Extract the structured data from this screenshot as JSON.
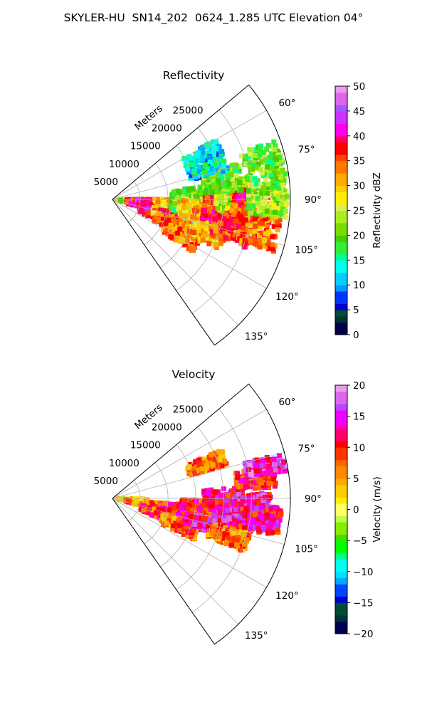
{
  "figure": {
    "title": "SKYLER-HU  SN14_202  0624_1.285 UTC Elevation 04°"
  },
  "chart_data": [
    {
      "type": "heatmap",
      "title": "Reflectivity",
      "radial_label": "Meters",
      "radial_ticks": [
        5000,
        10000,
        15000,
        20000,
        25000
      ],
      "radial_tick_labels": [
        "5000",
        "10000",
        "15000",
        "20000",
        "25000"
      ],
      "radial_max_m": 32000,
      "azimuth_range_deg": [
        50,
        145
      ],
      "azimuth_ticks": [
        60,
        75,
        90,
        105,
        120,
        135
      ],
      "azimuth_tick_labels": [
        "60°",
        "75°",
        "90°",
        "105°",
        "120°",
        "135°"
      ],
      "colorbar": {
        "label": "Reflectivity dBZ",
        "range": [
          0,
          50
        ],
        "ticks": [
          0,
          5,
          10,
          15,
          20,
          25,
          30,
          35,
          40,
          45,
          50
        ],
        "tick_labels": [
          "0",
          "5",
          "10",
          "15",
          "20",
          "25",
          "30",
          "35",
          "40",
          "45",
          "50"
        ],
        "stops": [
          {
            "v": 0,
            "c": "#00004d"
          },
          {
            "v": 1.5,
            "c": "#003333"
          },
          {
            "v": 3,
            "c": "#004d33"
          },
          {
            "v": 4.5,
            "c": "#0000cc"
          },
          {
            "v": 6,
            "c": "#0033ff"
          },
          {
            "v": 8,
            "c": "#0099ff"
          },
          {
            "v": 10,
            "c": "#00ccff"
          },
          {
            "v": 12,
            "c": "#00ffee"
          },
          {
            "v": 14,
            "c": "#00ff99"
          },
          {
            "v": 16,
            "c": "#33ee33"
          },
          {
            "v": 18,
            "c": "#44cc00"
          },
          {
            "v": 20,
            "c": "#77dd00"
          },
          {
            "v": 22,
            "c": "#aaee22"
          },
          {
            "v": 24,
            "c": "#ddee55"
          },
          {
            "v": 26,
            "c": "#ffee00"
          },
          {
            "v": 28,
            "c": "#ffcc00"
          },
          {
            "v": 30,
            "c": "#ffaa00"
          },
          {
            "v": 32,
            "c": "#ff7700"
          },
          {
            "v": 34,
            "c": "#ff4400"
          },
          {
            "v": 36,
            "c": "#ff0000"
          },
          {
            "v": 38,
            "c": "#ff0066"
          },
          {
            "v": 40,
            "c": "#ff00ee"
          },
          {
            "v": 42,
            "c": "#cc33ff"
          },
          {
            "v": 44,
            "c": "#aa55ff"
          },
          {
            "v": 46,
            "c": "#dd66ee"
          },
          {
            "v": 48,
            "c": "#ee99ee"
          },
          {
            "v": 50,
            "c": "#ffeeff"
          }
        ]
      },
      "cells": [
        {
          "az": 95,
          "r": 3000,
          "v": 23,
          "spread": 6
        },
        {
          "az": 98,
          "r": 6000,
          "v": 38,
          "spread": 8
        },
        {
          "az": 105,
          "r": 8000,
          "v": 40,
          "spread": 10
        },
        {
          "az": 100,
          "r": 11000,
          "v": 30,
          "spread": 10
        },
        {
          "az": 110,
          "r": 12000,
          "v": 35,
          "spread": 8
        },
        {
          "az": 115,
          "r": 14000,
          "v": 33,
          "spread": 8
        },
        {
          "az": 92,
          "r": 14000,
          "v": 20,
          "spread": 10
        },
        {
          "az": 98,
          "r": 16000,
          "v": 28,
          "spread": 8
        },
        {
          "az": 105,
          "r": 18000,
          "v": 30,
          "spread": 10
        },
        {
          "az": 95,
          "r": 20000,
          "v": 37,
          "spread": 8
        },
        {
          "az": 100,
          "r": 22000,
          "v": 35,
          "spread": 10
        },
        {
          "az": 88,
          "r": 22000,
          "v": 24,
          "spread": 8
        },
        {
          "az": 93,
          "r": 25000,
          "v": 36,
          "spread": 8
        },
        {
          "az": 100,
          "r": 27000,
          "v": 33,
          "spread": 8
        },
        {
          "az": 90,
          "r": 28000,
          "v": 22,
          "spread": 6
        },
        {
          "az": 78,
          "r": 28000,
          "v": 20,
          "spread": 8
        },
        {
          "az": 80,
          "r": 20000,
          "v": 20,
          "spread": 6
        },
        {
          "az": 68,
          "r": 18000,
          "v": 12,
          "spread": 8
        }
      ]
    },
    {
      "type": "heatmap",
      "title": "Velocity",
      "radial_label": "Meters",
      "radial_ticks": [
        5000,
        10000,
        15000,
        20000,
        25000
      ],
      "radial_tick_labels": [
        "5000",
        "10000",
        "15000",
        "20000",
        "25000"
      ],
      "radial_max_m": 32000,
      "azimuth_range_deg": [
        50,
        145
      ],
      "azimuth_ticks": [
        60,
        75,
        90,
        105,
        120,
        135
      ],
      "azimuth_tick_labels": [
        "60°",
        "75°",
        "90°",
        "105°",
        "120°",
        "135°"
      ],
      "colorbar": {
        "label": "Velocity (m/s)",
        "range": [
          -20,
          20
        ],
        "ticks": [
          -20,
          -15,
          -10,
          -5,
          0,
          5,
          10,
          15,
          20
        ],
        "tick_labels": [
          "−20",
          "−15",
          "−10",
          "−5",
          "0",
          "5",
          "10",
          "15",
          "20"
        ],
        "stops": [
          {
            "v": -20,
            "c": "#00004d"
          },
          {
            "v": -18.5,
            "c": "#003333"
          },
          {
            "v": -17,
            "c": "#004d33"
          },
          {
            "v": -15.5,
            "c": "#0000cc"
          },
          {
            "v": -14,
            "c": "#0044ff"
          },
          {
            "v": -12.5,
            "c": "#00aaff"
          },
          {
            "v": -11,
            "c": "#00ddff"
          },
          {
            "v": -10,
            "c": "#00ffee"
          },
          {
            "v": -8.5,
            "c": "#00ff88"
          },
          {
            "v": -7,
            "c": "#00ff00"
          },
          {
            "v": -5.5,
            "c": "#44dd00"
          },
          {
            "v": -4,
            "c": "#88ee00"
          },
          {
            "v": -2.5,
            "c": "#bbff44"
          },
          {
            "v": -1,
            "c": "#ffff66"
          },
          {
            "v": 0.5,
            "c": "#ffee00"
          },
          {
            "v": 2,
            "c": "#ffcc00"
          },
          {
            "v": 3.5,
            "c": "#ffaa00"
          },
          {
            "v": 5,
            "c": "#ff8800"
          },
          {
            "v": 6.5,
            "c": "#ff6600"
          },
          {
            "v": 8,
            "c": "#ff3300"
          },
          {
            "v": 9.5,
            "c": "#ff0000"
          },
          {
            "v": 11,
            "c": "#ff0066"
          },
          {
            "v": 12.5,
            "c": "#ff00cc"
          },
          {
            "v": 14,
            "c": "#ee00ff"
          },
          {
            "v": 15.5,
            "c": "#bb44ff"
          },
          {
            "v": 17,
            "c": "#dd66ee"
          },
          {
            "v": 18.5,
            "c": "#ee99ee"
          },
          {
            "v": 20,
            "c": "#ffeeff"
          }
        ]
      },
      "cells": [
        {
          "az": 95,
          "r": 3000,
          "v": 1,
          "spread": 4
        },
        {
          "az": 100,
          "r": 6000,
          "v": 6,
          "spread": 5
        },
        {
          "az": 108,
          "r": 9000,
          "v": 8,
          "spread": 5
        },
        {
          "az": 100,
          "r": 12000,
          "v": 10,
          "spread": 5
        },
        {
          "az": 112,
          "r": 13000,
          "v": 7,
          "spread": 5
        },
        {
          "az": 95,
          "r": 16000,
          "v": 11,
          "spread": 4
        },
        {
          "az": 105,
          "r": 17000,
          "v": 13,
          "spread": 4
        },
        {
          "az": 90,
          "r": 20000,
          "v": 12,
          "spread": 5
        },
        {
          "az": 100,
          "r": 22000,
          "v": 14,
          "spread": 4
        },
        {
          "az": 108,
          "r": 22000,
          "v": 6,
          "spread": 4
        },
        {
          "az": 92,
          "r": 25000,
          "v": 14,
          "spread": 4
        },
        {
          "az": 82,
          "r": 26000,
          "v": 10,
          "spread": 4
        },
        {
          "az": 78,
          "r": 28000,
          "v": 15,
          "spread": 3
        },
        {
          "az": 98,
          "r": 27000,
          "v": 12,
          "spread": 5
        },
        {
          "az": 70,
          "r": 18000,
          "v": 7,
          "spread": 4
        }
      ]
    }
  ]
}
